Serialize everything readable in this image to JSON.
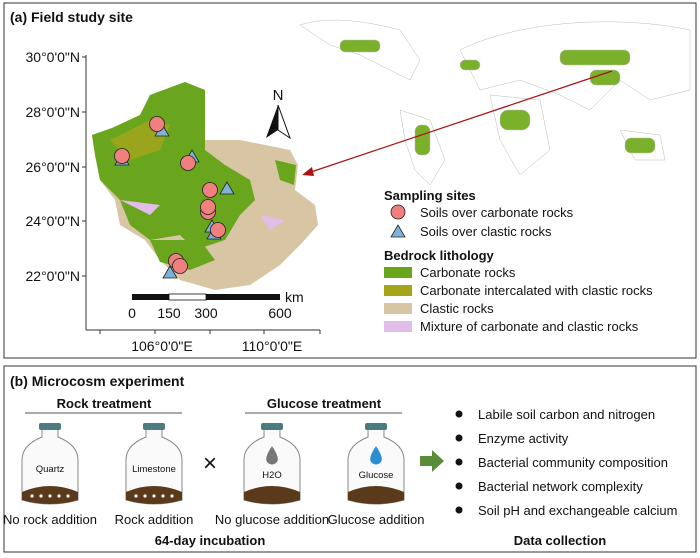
{
  "panel_a": {
    "title": "(a) Field study site",
    "y_ticks": [
      "30°0'0\"N",
      "28°0'0\"N",
      "26°0'0\"N",
      "24°0'0\"N",
      "22°0'0\"N"
    ],
    "x_ticks": [
      "106°0'0\"E",
      "110°0'0\"E"
    ],
    "north_label": "N",
    "scale_bar": {
      "unit": "km",
      "labels": [
        "0",
        "150",
        "300",
        "600"
      ]
    },
    "legend": {
      "sites_title": "Sampling sites",
      "sites": [
        {
          "label": "Soils over carbonate rocks",
          "color": "#f08080",
          "marker": "circle"
        },
        {
          "label": "Soils over clastic rocks",
          "color": "#7fb2d9",
          "marker": "triangle"
        }
      ],
      "lithology_title": "Bedrock lithology",
      "lithology": [
        {
          "label": "Carbonate rocks",
          "color": "#6aa51e"
        },
        {
          "label": "Carbonate intercalated with clastic rocks",
          "color": "#a5a51c"
        },
        {
          "label": "Clastic rocks",
          "color": "#d8c5a4"
        },
        {
          "label": "Mixture of carbonate and clastic rocks",
          "color": "#e3bde9"
        }
      ]
    }
  },
  "panel_b": {
    "title": "(b) Microcosm experiment",
    "rock_treatment": "Rock treatment",
    "glucose_treatment": "Glucose treatment",
    "jars": [
      {
        "inner": "Quartz",
        "caption": "No rock addition"
      },
      {
        "inner": "Limestone",
        "caption": "Rock addition"
      },
      {
        "inner": "H2O",
        "caption": "No glucose addition"
      },
      {
        "inner": "Glucose",
        "caption": "Glucose addition"
      }
    ],
    "cross": "×",
    "incubation": "64-day incubation",
    "data_collection_title": "Data collection",
    "data_collection": [
      "Labile soil carbon and nitrogen",
      "Enzyme activity",
      "Bacterial community composition",
      "Bacterial network complexity",
      "Soil pH and exchangeable calcium"
    ]
  }
}
